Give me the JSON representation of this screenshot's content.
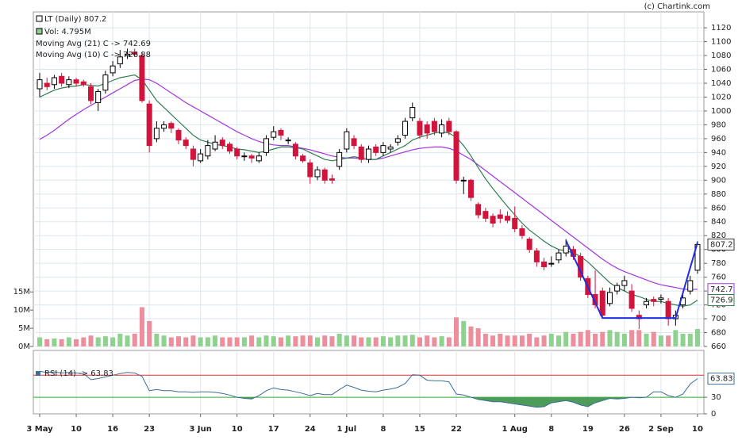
{
  "chart_data": {
    "type": "candlestick",
    "credit": "(c) Chartink.com",
    "legend_price": "LT (Daily) 807.2",
    "legend_volume": "Vol: 4.795M",
    "legend_ma21": "Moving Avg (21) C -> 742.69",
    "legend_ma10": "Moving Avg (10) C -> 726.88",
    "legend_rsi": "RSI (14) -> 63.83",
    "categories": [
      "3 May",
      null,
      null,
      null,
      null,
      "10",
      null,
      null,
      null,
      null,
      "16",
      null,
      null,
      null,
      null,
      "23",
      null,
      null,
      null,
      null,
      null,
      null,
      "3 Jun",
      null,
      null,
      null,
      null,
      "10",
      null,
      null,
      null,
      null,
      "17",
      null,
      null,
      null,
      null,
      "24",
      null,
      null,
      null,
      null,
      "1 Jul",
      null,
      null,
      null,
      null,
      "8",
      null,
      null,
      null,
      null,
      "15",
      null,
      null,
      null,
      null,
      "22",
      null,
      null,
      null,
      null,
      null,
      null,
      null,
      "1 Aug",
      null,
      null,
      null,
      null,
      "8",
      null,
      null,
      null,
      null,
      "19",
      null,
      null,
      null,
      null,
      "26",
      null,
      null,
      null,
      null,
      "2 Sep",
      null,
      null,
      null,
      null,
      "10"
    ],
    "open": [
      1032,
      1040,
      1038,
      1050,
      1038,
      1045,
      1042,
      1035,
      1012,
      1030,
      1055,
      1068,
      1080,
      1085,
      1080,
      1010,
      960,
      975,
      982,
      972,
      958,
      945,
      928,
      935,
      945,
      958,
      952,
      945,
      935,
      935,
      928,
      940,
      962,
      972,
      958,
      952,
      935,
      925,
      905,
      915,
      902,
      920,
      945,
      960,
      948,
      930,
      948,
      940,
      945,
      955,
      965,
      990,
      985,
      980,
      985,
      968,
      985,
      970,
      900,
      900,
      865,
      855,
      848,
      850,
      848,
      845,
      830,
      815,
      798,
      782,
      780,
      785,
      795,
      800,
      790,
      758,
      735,
      740,
      722,
      740,
      748,
      740,
      705,
      720,
      728,
      728,
      725,
      700,
      720,
      740,
      770
    ],
    "high": [
      1055,
      1048,
      1052,
      1055,
      1050,
      1048,
      1045,
      1040,
      1032,
      1058,
      1072,
      1088,
      1090,
      1090,
      1085,
      1015,
      985,
      985,
      985,
      975,
      962,
      950,
      945,
      958,
      965,
      962,
      955,
      948,
      940,
      938,
      940,
      965,
      978,
      975,
      962,
      955,
      938,
      930,
      920,
      918,
      908,
      945,
      975,
      965,
      952,
      950,
      952,
      955,
      952,
      965,
      990,
      1012,
      990,
      985,
      990,
      988,
      990,
      972,
      905,
      902,
      868,
      860,
      852,
      858,
      855,
      862,
      835,
      818,
      802,
      788,
      790,
      800,
      815,
      805,
      795,
      762,
      770,
      745,
      745,
      752,
      762,
      750,
      712,
      730,
      732,
      735,
      730,
      712,
      735,
      762,
      812
    ],
    "low": [
      1020,
      1030,
      1032,
      1035,
      1033,
      1035,
      1035,
      1010,
      1000,
      1025,
      1050,
      1062,
      1075,
      1078,
      1012,
      940,
      955,
      970,
      968,
      952,
      945,
      920,
      925,
      930,
      942,
      945,
      938,
      930,
      928,
      925,
      925,
      935,
      958,
      958,
      952,
      930,
      925,
      895,
      900,
      895,
      895,
      915,
      940,
      945,
      925,
      925,
      935,
      935,
      940,
      950,
      960,
      985,
      960,
      960,
      965,
      962,
      965,
      895,
      880,
      870,
      845,
      840,
      832,
      838,
      838,
      825,
      815,
      795,
      775,
      770,
      775,
      780,
      790,
      785,
      755,
      730,
      715,
      700,
      718,
      735,
      740,
      710,
      685,
      715,
      718,
      722,
      690,
      690,
      715,
      735,
      765
    ],
    "close": [
      1045,
      1035,
      1048,
      1040,
      1045,
      1040,
      1038,
      1015,
      1028,
      1052,
      1065,
      1078,
      1082,
      1082,
      1015,
      950,
      975,
      980,
      975,
      958,
      950,
      930,
      938,
      950,
      955,
      950,
      942,
      935,
      935,
      932,
      935,
      960,
      970,
      965,
      958,
      935,
      928,
      905,
      915,
      900,
      900,
      940,
      970,
      950,
      930,
      945,
      940,
      950,
      948,
      960,
      985,
      1005,
      965,
      968,
      970,
      980,
      970,
      900,
      900,
      875,
      850,
      845,
      838,
      845,
      842,
      830,
      820,
      800,
      782,
      775,
      780,
      795,
      805,
      790,
      760,
      735,
      720,
      705,
      738,
      748,
      755,
      715,
      700,
      725,
      725,
      730,
      700,
      705,
      730,
      755,
      807.2
    ],
    "volume": [
      2.5,
      2.0,
      2.2,
      2.0,
      2.5,
      2.0,
      2.5,
      3.0,
      2.5,
      2.8,
      2.5,
      3.5,
      3.0,
      3.5,
      10.8,
      7.0,
      3.5,
      3.0,
      2.5,
      2.8,
      2.5,
      3.0,
      2.5,
      2.5,
      3.0,
      2.5,
      2.5,
      2.5,
      2.5,
      3.0,
      2.5,
      3.0,
      2.8,
      2.5,
      3.0,
      2.8,
      3.0,
      3.0,
      2.5,
      3.0,
      2.8,
      3.5,
      3.0,
      3.0,
      2.5,
      2.5,
      2.5,
      2.8,
      2.5,
      3.0,
      3.0,
      3.2,
      2.5,
      3.0,
      2.5,
      2.8,
      2.5,
      8.0,
      7.0,
      5.5,
      5.0,
      3.5,
      3.0,
      3.5,
      3.0,
      3.0,
      3.0,
      3.5,
      2.5,
      3.0,
      3.5,
      3.0,
      4.0,
      3.5,
      4.0,
      4.5,
      3.5,
      4.0,
      4.5,
      4.0,
      3.5,
      4.5,
      4.5,
      3.5,
      4.0,
      3.0,
      3.0,
      4.5,
      3.5,
      3.5,
      4.795
    ],
    "ma10": [
      1020,
      1025,
      1030,
      1033,
      1035,
      1036,
      1038,
      1037,
      1036,
      1040,
      1044,
      1048,
      1050,
      1052,
      1045,
      1030,
      1015,
      1005,
      995,
      985,
      975,
      965,
      958,
      955,
      952,
      950,
      948,
      945,
      944,
      942,
      940,
      942,
      945,
      948,
      948,
      947,
      945,
      940,
      935,
      930,
      928,
      930,
      932,
      934,
      932,
      930,
      930,
      935,
      940,
      945,
      950,
      958,
      962,
      965,
      968,
      970,
      968,
      962,
      950,
      935,
      918,
      902,
      888,
      875,
      862,
      850,
      838,
      828,
      820,
      812,
      805,
      800,
      798,
      795,
      790,
      782,
      772,
      762,
      752,
      745,
      740,
      735,
      732,
      728,
      725,
      725,
      722,
      720,
      718,
      720,
      726.88
    ],
    "ma21": [
      959,
      965,
      972,
      980,
      988,
      995,
      1002,
      1008,
      1014,
      1020,
      1026,
      1032,
      1038,
      1044,
      1046,
      1045,
      1040,
      1033,
      1026,
      1019,
      1012,
      1006,
      1000,
      994,
      988,
      982,
      976,
      970,
      965,
      960,
      956,
      953,
      951,
      950,
      950,
      948,
      946,
      944,
      941,
      938,
      935,
      933,
      932,
      932,
      931,
      930,
      930,
      932,
      935,
      938,
      941,
      944,
      946,
      947,
      948,
      948,
      946,
      942,
      936,
      930,
      922,
      914,
      906,
      898,
      890,
      882,
      874,
      866,
      858,
      850,
      842,
      834,
      826,
      818,
      810,
      802,
      794,
      786,
      779,
      773,
      768,
      764,
      760,
      756,
      752,
      749,
      747,
      745,
      743,
      742,
      742.69
    ],
    "rsi": [
      77,
      75,
      76,
      74,
      75,
      74,
      73,
      62,
      64,
      67,
      70,
      73,
      75,
      74,
      68,
      42,
      44,
      42,
      42,
      40,
      40,
      39,
      40,
      40,
      39,
      37,
      34,
      30,
      28,
      27,
      33,
      42,
      47,
      44,
      43,
      40,
      37,
      33,
      37,
      35,
      35,
      44,
      52,
      48,
      43,
      41,
      40,
      43,
      45,
      48,
      55,
      71,
      70,
      61,
      60,
      60,
      58,
      36,
      34,
      30,
      26,
      24,
      22,
      22,
      20,
      18,
      16,
      14,
      12,
      13,
      20,
      22,
      24,
      21,
      16,
      13,
      20,
      24,
      28,
      27,
      28,
      30,
      29,
      30,
      40,
      40,
      33,
      30,
      36,
      54,
      63.83
    ],
    "pattern": {
      "x": [
        72,
        77,
        87,
        90
      ],
      "values": [
        813,
        701,
        701,
        810
      ]
    },
    "ylim": [
      660,
      1143
    ],
    "yticks": [
      660,
      680,
      700,
      720,
      740,
      760,
      780,
      800,
      820,
      840,
      860,
      880,
      900,
      920,
      940,
      960,
      980,
      1000,
      1020,
      1040,
      1060,
      1080,
      1100,
      1120
    ],
    "vol_ylim": [
      0,
      92
    ],
    "vol_ticks": [
      {
        "value": 0,
        "label": "0M"
      },
      {
        "value": 5,
        "label": "5M"
      },
      {
        "value": 10,
        "label": "10M"
      },
      {
        "value": 15,
        "label": "15M"
      }
    ],
    "rsi_ylim": [
      0,
      115
    ],
    "rsi_ticks": [
      0,
      30
    ],
    "rsi_lines": [
      30,
      70
    ],
    "price_tags": [
      {
        "value": 807.2,
        "label": "807.2"
      },
      {
        "value": 742.69,
        "label": "742.7"
      },
      {
        "value": 726.88,
        "label": "726.9"
      }
    ],
    "rsi_tag": {
      "value": 63.83,
      "label": "63.83"
    },
    "colors": {
      "up": "#ffffff",
      "down": "#d0143c",
      "vol_up": "#8fd18f",
      "vol_down": "#ec8e9c",
      "ma21": "#a235e0",
      "ma10": "#2e7d4f",
      "rsi": "#3f6d96",
      "pattern": "#1f2fe0"
    },
    "grid": true
  }
}
